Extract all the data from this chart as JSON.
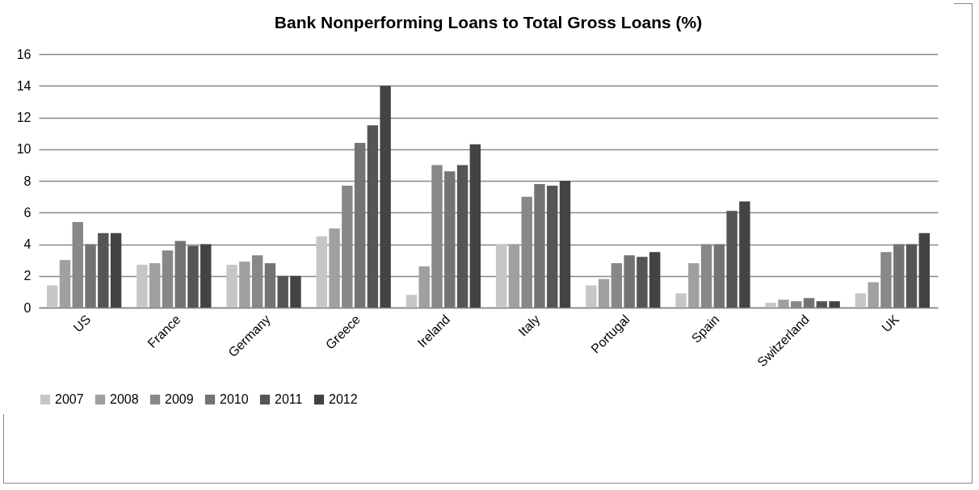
{
  "chart_data": {
    "type": "bar",
    "title": "Bank Nonperforming Loans to Total Gross Loans (%)",
    "categories": [
      "US",
      "France",
      "Germany",
      "Greece",
      "Ireland",
      "Italy",
      "Portugal",
      "Spain",
      "Switzerland",
      "UK"
    ],
    "series": [
      {
        "name": "2007",
        "color": "#c6c6c6",
        "values": [
          1.4,
          2.7,
          2.7,
          4.5,
          0.8,
          4.0,
          1.4,
          0.9,
          0.3,
          0.9
        ]
      },
      {
        "name": "2008",
        "color": "#a0a0a0",
        "values": [
          3.0,
          2.8,
          2.9,
          5.0,
          2.6,
          4.0,
          1.8,
          2.8,
          0.5,
          1.6
        ]
      },
      {
        "name": "2009",
        "color": "#888888",
        "values": [
          5.4,
          3.6,
          3.3,
          7.7,
          9.0,
          7.0,
          2.8,
          4.0,
          0.4,
          3.5
        ]
      },
      {
        "name": "2010",
        "color": "#737373",
        "values": [
          4.0,
          4.2,
          2.8,
          10.4,
          8.6,
          7.8,
          3.3,
          4.0,
          0.6,
          4.0
        ]
      },
      {
        "name": "2011",
        "color": "#555555",
        "values": [
          4.7,
          3.9,
          2.0,
          11.5,
          9.0,
          7.7,
          3.2,
          6.1,
          0.4,
          4.0
        ]
      },
      {
        "name": "2012",
        "color": "#434343",
        "values": [
          4.7,
          4.0,
          2.0,
          14.0,
          10.3,
          8.0,
          3.5,
          6.7,
          0.4,
          4.7
        ]
      }
    ],
    "ylim": [
      0,
      16
    ],
    "yticks": [
      0,
      2,
      4,
      6,
      8,
      10,
      12,
      14,
      16
    ],
    "grid": "y",
    "legend": "bottom"
  }
}
